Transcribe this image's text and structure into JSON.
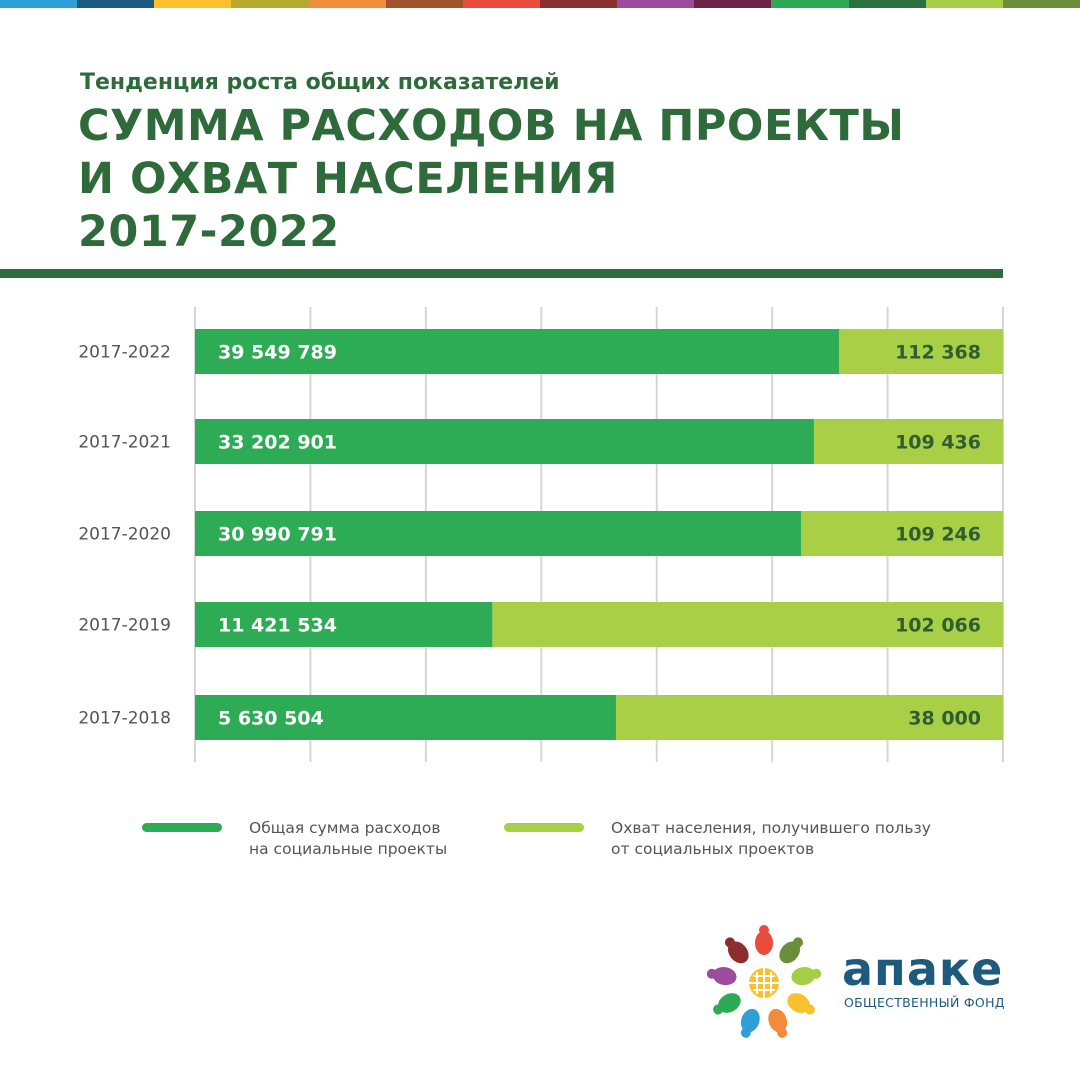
{
  "header": {
    "subtitle": "Тенденция роста общих показателей",
    "title_lines": [
      "СУММА РАСХОДОВ НА ПРОЕКТЫ",
      "И ОХВАТ НАСЕЛЕНИЯ",
      "2017-2022"
    ]
  },
  "colors": {
    "strip": [
      "#2f9fd7",
      "#1b5a80",
      "#fbc02d",
      "#b7a82f",
      "#f08c3a",
      "#a0522d",
      "#e94b3c",
      "#8b2e2e",
      "#9b4c9c",
      "#6b2347",
      "#2eaa54",
      "#2c7040",
      "#a6ce44",
      "#6b8e3a"
    ],
    "title": "#2f6b3a",
    "expenses": "#2eac55",
    "coverage": "#a8cf46",
    "coverage_label": "#2f5e32",
    "brand": "#1e5a7d"
  },
  "chart_data": {
    "type": "bar",
    "orientation": "horizontal",
    "stacked": true,
    "note": "Две полосы на строку: расходы и охват, показано в виде долей ширины строки",
    "categories": [
      "2017-2022",
      "2017-2021",
      "2017-2020",
      "2017-2019",
      "2017-2018"
    ],
    "series": [
      {
        "name": "Общая сумма расходов на социальные проекты",
        "labels": [
          "39 549 789",
          "33 202 901",
          "30 990 791",
          "11 421 534",
          "5 630 504"
        ],
        "values": [
          39549789,
          33202901,
          30990791,
          11421534,
          5630504
        ],
        "share_of_row": [
          0.797,
          0.766,
          0.75,
          0.368,
          0.521
        ]
      },
      {
        "name": "Охват населения, получившего пользу от социальных проектов",
        "labels": [
          "112 368",
          "109 436",
          "109 246",
          "102 066",
          "38 000"
        ],
        "values": [
          112368,
          109436,
          109246,
          102066,
          38000
        ]
      }
    ],
    "grid": true,
    "legend_position": "bottom"
  },
  "legend": [
    {
      "lines": [
        "Общая сумма расходов",
        "на социальные проекты"
      ]
    },
    {
      "lines": [
        "Охват населения, получившего пользу",
        "от социальных проектов"
      ]
    }
  ],
  "brand": {
    "name": "апаке",
    "tagline": "ОБЩЕСТВЕННЫЙ ФОНД"
  }
}
